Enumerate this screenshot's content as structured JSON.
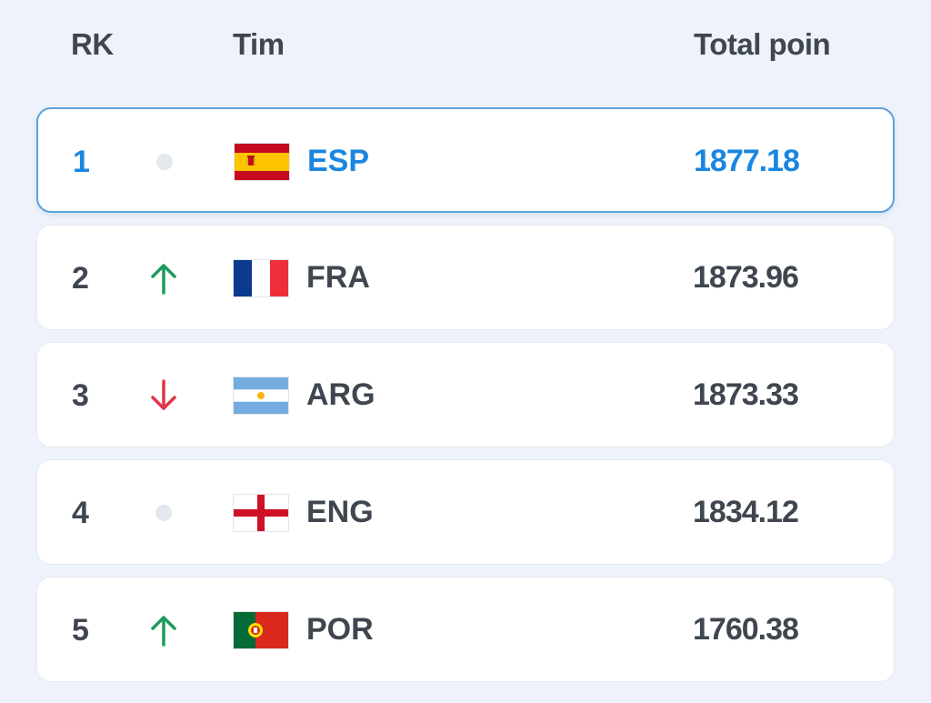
{
  "header": {
    "rank_label": "RK",
    "team_label": "Tim",
    "points_label": "Total poin"
  },
  "colors": {
    "accent": "#1a86e0",
    "text": "#3f4650",
    "up": "#1e9b5c",
    "down": "#e0364a",
    "neutral": "#e3e7ee",
    "background": "#eef2fa"
  },
  "rows": [
    {
      "rank": "1",
      "trend": "neutral",
      "trend_icon": "neutral-dot-icon",
      "flag": "spain-flag-icon",
      "code": "ESP",
      "points": "1877.18",
      "selected": true
    },
    {
      "rank": "2",
      "trend": "up",
      "trend_icon": "arrow-up-icon",
      "flag": "france-flag-icon",
      "code": "FRA",
      "points": "1873.96",
      "selected": false
    },
    {
      "rank": "3",
      "trend": "down",
      "trend_icon": "arrow-down-icon",
      "flag": "argentina-flag-icon",
      "code": "ARG",
      "points": "1873.33",
      "selected": false
    },
    {
      "rank": "4",
      "trend": "neutral",
      "trend_icon": "neutral-dot-icon",
      "flag": "england-flag-icon",
      "code": "ENG",
      "points": "1834.12",
      "selected": false
    },
    {
      "rank": "5",
      "trend": "up",
      "trend_icon": "arrow-up-icon",
      "flag": "portugal-flag-icon",
      "code": "POR",
      "points": "1760.38",
      "selected": false
    }
  ]
}
